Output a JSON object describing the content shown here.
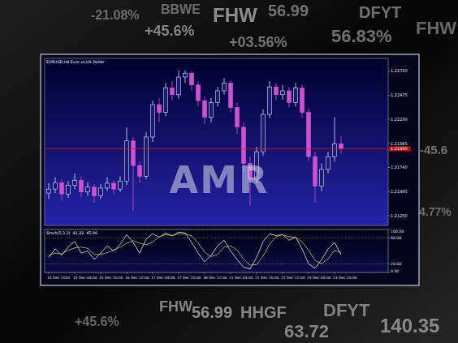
{
  "chart_data": {
    "type": "candlestick",
    "title": "EURUSD,H4  Euro vs US Dollar",
    "categories": [
      "14 Dec 2020",
      null,
      null,
      null,
      "15 Dec 04:00",
      null,
      null,
      null,
      "15 Dec 20:00",
      null,
      null,
      null,
      "16 Dec 12:00",
      null,
      null,
      null,
      "17 Dec 04:00",
      null,
      null,
      null,
      "17 Dec 20:00",
      null,
      null,
      null,
      "18 Dec 12:00",
      null,
      null,
      null,
      "21 Dec 04:00",
      null,
      null,
      null,
      "21 Dec 20:00",
      null,
      null,
      null,
      "22 Dec 12:00",
      null,
      null,
      null,
      "23 Dec 04:00",
      null,
      null,
      null,
      "23 Dec 20:00",
      null
    ],
    "open": [
      1.2148,
      1.2152,
      1.21585,
      1.2147,
      1.2156,
      1.2161,
      1.2149,
      1.2154,
      1.2145,
      1.2153,
      1.2158,
      1.2152,
      1.216,
      1.2201,
      1.2176,
      1.2165,
      1.2205,
      1.2238,
      1.223,
      1.2255,
      1.2248,
      1.2266,
      1.227,
      1.2258,
      1.2242,
      1.2225,
      1.224,
      1.2252,
      1.226,
      1.2235,
      1.2215,
      1.2178,
      1.2162,
      1.219,
      1.2228,
      1.2256,
      1.2248,
      1.2252,
      1.224,
      1.2255,
      1.223,
      1.2185,
      1.2155,
      1.2172,
      1.2185,
      1.2198
    ],
    "high": [
      1.2158,
      1.2164,
      1.2162,
      1.216,
      1.2168,
      1.2165,
      1.2159,
      1.2157,
      1.2157,
      1.2164,
      1.2161,
      1.2165,
      1.2215,
      1.2205,
      1.218,
      1.221,
      1.2242,
      1.2245,
      1.226,
      1.2262,
      1.2273,
      1.2273,
      1.2272,
      1.2262,
      1.2246,
      1.2245,
      1.2256,
      1.2265,
      1.2263,
      1.224,
      1.222,
      1.2185,
      1.2195,
      1.2233,
      1.2262,
      1.226,
      1.2258,
      1.2256,
      1.226,
      1.2258,
      1.2234,
      1.219,
      1.2178,
      1.219,
      1.2225,
      1.2206
    ],
    "low": [
      1.2142,
      1.2148,
      1.214,
      1.2143,
      1.2152,
      1.2144,
      1.2145,
      1.2138,
      1.2142,
      1.215,
      1.2147,
      1.2149,
      1.2156,
      1.213,
      1.2158,
      1.2162,
      1.22,
      1.222,
      1.2226,
      1.2242,
      1.2244,
      1.226,
      1.2252,
      1.2236,
      1.2218,
      1.222,
      1.2236,
      1.2248,
      1.223,
      1.2208,
      1.217,
      1.2135,
      1.2158,
      1.2186,
      1.2224,
      1.2242,
      1.2243,
      1.2235,
      1.2236,
      1.2225,
      1.218,
      1.2138,
      1.215,
      1.2168,
      1.218,
      1.2188
    ],
    "close": [
      1.2152,
      1.21585,
      1.2147,
      1.2156,
      1.2161,
      1.2149,
      1.2154,
      1.2145,
      1.2153,
      1.2158,
      1.2152,
      1.216,
      1.2201,
      1.2176,
      1.2165,
      1.2205,
      1.2238,
      1.223,
      1.2255,
      1.2248,
      1.2266,
      1.227,
      1.2258,
      1.2242,
      1.2225,
      1.224,
      1.2252,
      1.226,
      1.2235,
      1.2215,
      1.2178,
      1.2162,
      1.219,
      1.2228,
      1.2256,
      1.2248,
      1.2252,
      1.224,
      1.2255,
      1.223,
      1.2185,
      1.2155,
      1.2172,
      1.2185,
      1.2198,
      1.2193
    ],
    "ylim": [
      1.2115,
      1.2285
    ],
    "yticks": [
      {
        "value": 1.2125,
        "label": "1.21250"
      },
      {
        "value": 1.21495,
        "label": "1.21495"
      },
      {
        "value": 1.2174,
        "label": "1.21740"
      },
      {
        "value": 1.21985,
        "label": "1.21985"
      },
      {
        "value": 1.2223,
        "label": "1.22230"
      },
      {
        "value": 1.22475,
        "label": "1.22475"
      },
      {
        "value": 1.2272,
        "label": "1.22720"
      }
    ],
    "grid": false,
    "current_price": {
      "value": 1.2193,
      "label": "1.21930"
    },
    "indicator": {
      "type": "line",
      "title": "Stoch(5,3,3)",
      "series": [
        {
          "color": "#e6e6d2",
          "values": [
            35,
            55,
            40,
            60,
            72,
            45,
            50,
            30,
            45,
            62,
            50,
            65,
            88,
            70,
            45,
            78,
            90,
            82,
            92,
            85,
            94,
            92,
            70,
            45,
            25,
            40,
            62,
            75,
            50,
            30,
            12,
            8,
            35,
            72,
            90,
            86,
            88,
            75,
            82,
            55,
            20,
            10,
            30,
            55,
            70,
            41.22
          ]
        },
        {
          "color": "#c8c25a",
          "values": [
            40,
            45,
            43,
            52,
            57,
            59,
            56,
            42,
            42,
            46,
            52,
            59,
            68,
            74,
            68,
            64,
            71,
            83,
            88,
            86,
            90,
            90,
            85,
            69,
            47,
            37,
            42,
            59,
            62,
            52,
            31,
            17,
            18,
            38,
            66,
            83,
            88,
            83,
            82,
            71,
            52,
            28,
            20,
            32,
            52,
            45.96
          ]
        }
      ],
      "ylim": [
        0,
        100
      ],
      "yticks": [
        {
          "value": 0,
          "label": "0.00"
        },
        {
          "value": 20,
          "label": "20.00"
        },
        {
          "value": 80,
          "label": "80.00"
        },
        {
          "value": 100,
          "label": "100.00"
        }
      ],
      "grid": true,
      "line_style": "dotted"
    }
  },
  "watermark": "AMR",
  "background_text": [
    "FHW",
    "56.99",
    "BBWE",
    "+45.6%",
    "-21.08%",
    "+03.56%",
    "56.83%",
    "DFYT",
    "FHW",
    "-45.6",
    "4.77%",
    "FHW",
    "56.99",
    "HHGF",
    "63.72",
    "DFYT",
    "140.35",
    "+45.6%"
  ]
}
